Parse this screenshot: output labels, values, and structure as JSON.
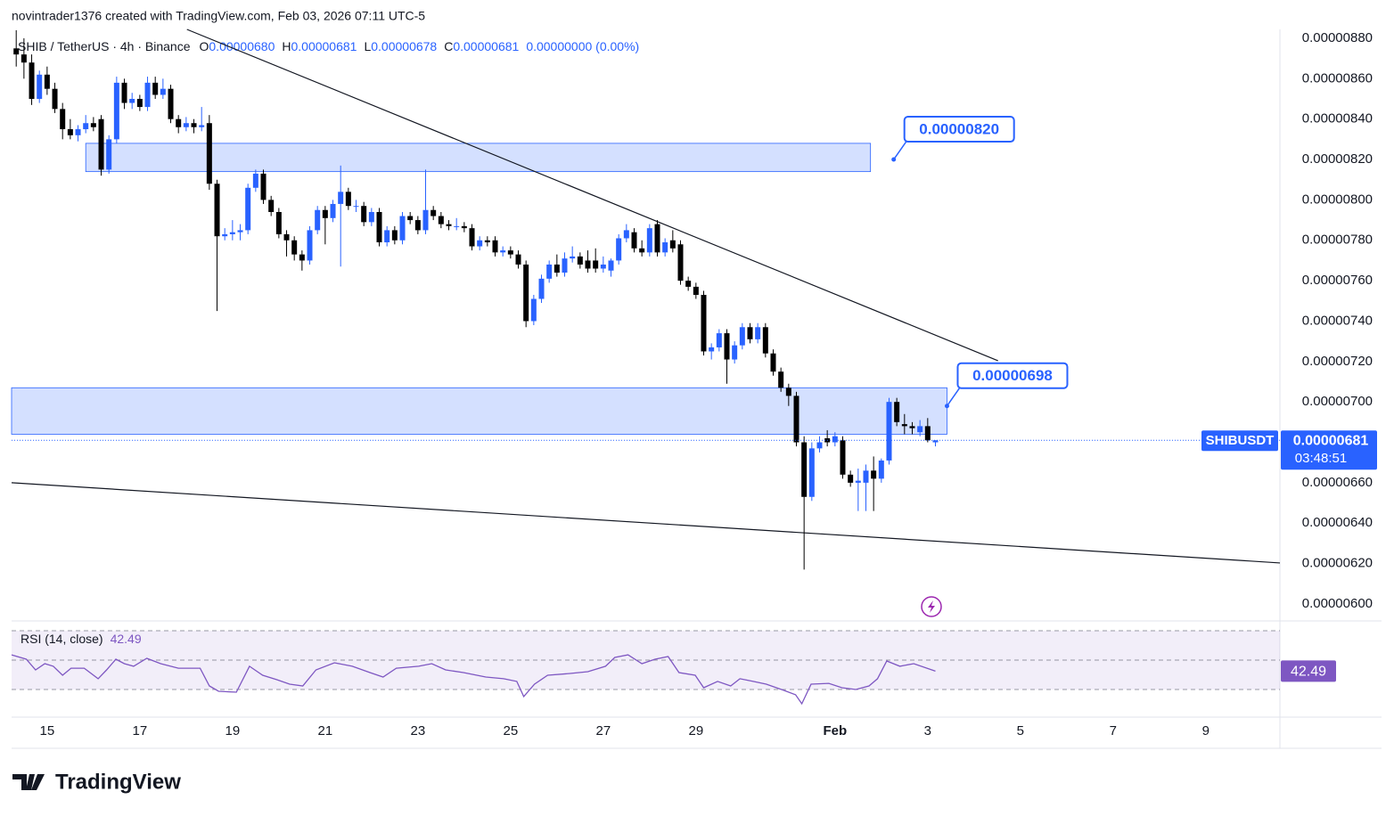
{
  "header": "novintrader1376 created with TradingView.com, Feb 03, 2026 07:11 UTC-5",
  "brand": "TradingView",
  "chart_data": {
    "type": "candlestick",
    "legend": {
      "symbol": "SHIB / TetherUS · 4h · Binance",
      "items": [
        {
          "key": "O",
          "label": "0.00000680"
        },
        {
          "key": "H",
          "label": "0.00000681"
        },
        {
          "key": "L",
          "label": "0.00000678"
        },
        {
          "key": "C",
          "label": "0.00000681"
        }
      ],
      "change": "0.00000000 (0.00%)"
    },
    "up_color": "#2962ff",
    "down_color": "#000000",
    "open": [
      8.75e-06,
      8.72e-06,
      8.68e-06,
      8.5e-06,
      8.62e-06,
      8.55e-06,
      8.45e-06,
      8.35e-06,
      8.32e-06,
      8.35e-06,
      8.38e-06,
      8.4e-06,
      8.15e-06,
      8.3e-06,
      8.58e-06,
      8.48e-06,
      8.5e-06,
      8.46e-06,
      8.58e-06,
      8.52e-06,
      8.55e-06,
      8.4e-06,
      8.36e-06,
      8.38e-06,
      8.36e-06,
      8.38e-06,
      8.08e-06,
      7.82e-06,
      7.83e-06,
      7.84e-06,
      7.85e-06,
      8.06e-06,
      8.13e-06,
      8e-06,
      7.94e-06,
      7.83e-06,
      7.8e-06,
      7.73e-06,
      7.7e-06,
      7.85e-06,
      7.95e-06,
      7.91e-06,
      7.98e-06,
      8.04e-06,
      7.97e-06,
      7.97e-06,
      7.89e-06,
      7.94e-06,
      7.79e-06,
      7.85e-06,
      7.8e-06,
      7.92e-06,
      7.9e-06,
      7.85e-06,
      7.95e-06,
      7.92e-06,
      7.88e-06,
      7.87e-06,
      7.87e-06,
      7.86e-06,
      7.77e-06,
      7.8e-06,
      7.8e-06,
      7.74e-06,
      7.75e-06,
      7.73e-06,
      7.68e-06,
      7.4e-06,
      7.51e-06,
      7.61e-06,
      7.68e-06,
      7.64e-06,
      7.71e-06,
      7.72e-06,
      7.7e-06,
      7.7e-06,
      7.66e-06,
      7.65e-06,
      7.7e-06,
      7.81e-06,
      7.84e-06,
      7.76e-06,
      7.74e-06,
      7.88e-06,
      7.74e-06,
      7.8e-06,
      7.78e-06,
      7.6e-06,
      7.57e-06,
      7.53e-06,
      7.25e-06,
      7.27e-06,
      7.34e-06,
      7.21e-06,
      7.28e-06,
      7.37e-06,
      7.31e-06,
      7.37e-06,
      7.24e-06,
      7.15e-06,
      7.07e-06,
      7.03e-06,
      6.8e-06,
      6.53e-06,
      6.77e-06,
      6.82e-06,
      6.8e-06,
      6.81e-06,
      6.64e-06,
      6.6e-06,
      6.6e-06,
      6.66e-06,
      6.62e-06,
      6.71e-06,
      7e-06,
      6.89e-06,
      6.88e-06,
      6.85e-06,
      6.88e-06,
      6.8e-06
    ],
    "high": [
      8.84e-06,
      8.8e-06,
      8.72e-06,
      8.64e-06,
      8.66e-06,
      8.58e-06,
      8.48e-06,
      8.4e-06,
      8.37e-06,
      8.42e-06,
      8.41e-06,
      8.42e-06,
      8.32e-06,
      8.61e-06,
      8.6e-06,
      8.53e-06,
      8.52e-06,
      8.61e-06,
      8.61e-06,
      8.6e-06,
      8.57e-06,
      8.42e-06,
      8.41e-06,
      8.4e-06,
      8.46e-06,
      8.42e-06,
      8.1e-06,
      7.86e-06,
      7.9e-06,
      7.88e-06,
      8.08e-06,
      8.15e-06,
      8.15e-06,
      8.02e-06,
      7.96e-06,
      7.85e-06,
      7.82e-06,
      7.75e-06,
      7.87e-06,
      7.97e-06,
      7.97e-06,
      8e-06,
      8.17e-06,
      8.06e-06,
      8e-06,
      7.99e-06,
      7.96e-06,
      7.96e-06,
      7.87e-06,
      7.87e-06,
      7.94e-06,
      7.94e-06,
      7.92e-06,
      8.15e-06,
      7.97e-06,
      7.94e-06,
      7.9e-06,
      7.91e-06,
      7.89e-06,
      7.88e-06,
      7.82e-06,
      7.82e-06,
      7.82e-06,
      7.77e-06,
      7.77e-06,
      7.75e-06,
      7.7e-06,
      7.53e-06,
      7.63e-06,
      7.7e-06,
      7.73e-06,
      7.74e-06,
      7.77e-06,
      7.74e-06,
      7.75e-06,
      7.76e-06,
      7.72e-06,
      7.71e-06,
      7.83e-06,
      7.88e-06,
      7.86e-06,
      7.8e-06,
      7.88e-06,
      7.9e-06,
      7.81e-06,
      7.85e-06,
      7.8e-06,
      7.62e-06,
      7.59e-06,
      7.55e-06,
      7.29e-06,
      7.36e-06,
      7.36e-06,
      7.3e-06,
      7.39e-06,
      7.39e-06,
      7.39e-06,
      7.39e-06,
      7.26e-06,
      7.17e-06,
      7.09e-06,
      7.05e-06,
      6.83e-06,
      6.8e-06,
      6.83e-06,
      6.86e-06,
      6.85e-06,
      6.83e-06,
      6.66e-06,
      6.67e-06,
      6.69e-06,
      6.73e-06,
      6.72e-06,
      7.02e-06,
      7.02e-06,
      6.94e-06,
      6.9e-06,
      6.91e-06,
      6.92e-06,
      6.81e-06
    ],
    "low": [
      8.66e-06,
      8.6e-06,
      8.47e-06,
      8.48e-06,
      8.52e-06,
      8.43e-06,
      8.3e-06,
      8.3e-06,
      8.29e-06,
      8.33e-06,
      8.34e-06,
      8.12e-06,
      8.13e-06,
      8.28e-06,
      8.45e-06,
      8.45e-06,
      8.44e-06,
      8.44e-06,
      8.5e-06,
      8.5e-06,
      8.38e-06,
      8.33e-06,
      8.34e-06,
      8.33e-06,
      8.34e-06,
      8.05e-06,
      7.45e-06,
      7.8e-06,
      7.8e-06,
      7.8e-06,
      7.83e-06,
      8.04e-06,
      7.98e-06,
      7.92e-06,
      7.81e-06,
      7.72e-06,
      7.7e-06,
      7.65e-06,
      7.68e-06,
      7.83e-06,
      7.78e-06,
      7.89e-06,
      7.67e-06,
      7.95e-06,
      7.94e-06,
      7.87e-06,
      7.87e-06,
      7.77e-06,
      7.77e-06,
      7.78e-06,
      7.78e-06,
      7.88e-06,
      7.83e-06,
      7.83e-06,
      7.9e-06,
      7.86e-06,
      7.85e-06,
      7.85e-06,
      7.84e-06,
      7.75e-06,
      7.75e-06,
      7.77e-06,
      7.72e-06,
      7.72e-06,
      7.71e-06,
      7.66e-06,
      7.37e-06,
      7.38e-06,
      7.49e-06,
      7.59e-06,
      7.62e-06,
      7.62e-06,
      7.69e-06,
      7.66e-06,
      7.64e-06,
      7.64e-06,
      7.64e-06,
      7.62e-06,
      7.68e-06,
      7.79e-06,
      7.74e-06,
      7.72e-06,
      7.72e-06,
      7.72e-06,
      7.72e-06,
      7.74e-06,
      7.58e-06,
      7.55e-06,
      7.51e-06,
      7.23e-06,
      7.21e-06,
      7.25e-06,
      7.09e-06,
      7.19e-06,
      7.26e-06,
      7.29e-06,
      7.29e-06,
      7.22e-06,
      7.13e-06,
      7.05e-06,
      6.98e-06,
      6.78e-06,
      6.17e-06,
      6.51e-06,
      6.75e-06,
      6.78e-06,
      6.78e-06,
      6.62e-06,
      6.58e-06,
      6.46e-06,
      6.46e-06,
      6.46e-06,
      6.6e-06,
      6.69e-06,
      6.88e-06,
      6.84e-06,
      6.84e-06,
      6.83e-06,
      6.8e-06,
      6.78e-06
    ],
    "close": [
      8.72e-06,
      8.68e-06,
      8.5e-06,
      8.62e-06,
      8.55e-06,
      8.45e-06,
      8.35e-06,
      8.32e-06,
      8.35e-06,
      8.38e-06,
      8.36e-06,
      8.15e-06,
      8.3e-06,
      8.58e-06,
      8.48e-06,
      8.5e-06,
      8.46e-06,
      8.58e-06,
      8.52e-06,
      8.55e-06,
      8.4e-06,
      8.36e-06,
      8.38e-06,
      8.36e-06,
      8.37e-06,
      8.08e-06,
      7.82e-06,
      7.83e-06,
      7.84e-06,
      7.85e-06,
      8.06e-06,
      8.13e-06,
      8e-06,
      7.94e-06,
      7.83e-06,
      7.8e-06,
      7.73e-06,
      7.7e-06,
      7.85e-06,
      7.95e-06,
      7.91e-06,
      7.98e-06,
      8.04e-06,
      7.97e-06,
      7.97e-06,
      7.89e-06,
      7.94e-06,
      7.79e-06,
      7.85e-06,
      7.8e-06,
      7.92e-06,
      7.9e-06,
      7.85e-06,
      7.95e-06,
      7.92e-06,
      7.88e-06,
      7.87e-06,
      7.87e-06,
      7.86e-06,
      7.77e-06,
      7.8e-06,
      7.79e-06,
      7.74e-06,
      7.75e-06,
      7.73e-06,
      7.68e-06,
      7.4e-06,
      7.51e-06,
      7.61e-06,
      7.68e-06,
      7.64e-06,
      7.71e-06,
      7.72e-06,
      7.68e-06,
      7.66e-06,
      7.66e-06,
      7.68e-06,
      7.7e-06,
      7.81e-06,
      7.85e-06,
      7.76e-06,
      7.74e-06,
      7.86e-06,
      7.74e-06,
      7.79e-06,
      7.76e-06,
      7.6e-06,
      7.57e-06,
      7.53e-06,
      7.25e-06,
      7.27e-06,
      7.34e-06,
      7.21e-06,
      7.28e-06,
      7.37e-06,
      7.31e-06,
      7.37e-06,
      7.24e-06,
      7.15e-06,
      7.07e-06,
      7.03e-06,
      6.8e-06,
      6.53e-06,
      6.77e-06,
      6.8e-06,
      6.8e-06,
      6.83e-06,
      6.64e-06,
      6.6e-06,
      6.61e-06,
      6.66e-06,
      6.62e-06,
      6.71e-06,
      7e-06,
      6.9e-06,
      6.88e-06,
      6.87e-06,
      6.88e-06,
      6.81e-06,
      6.81e-06
    ],
    "xlim": [
      -0.6,
      163.6
    ],
    "xticks": [
      {
        "value": 4,
        "label": "15"
      },
      {
        "value": 16,
        "label": "17"
      },
      {
        "value": 28,
        "label": "19"
      },
      {
        "value": 40,
        "label": "21"
      },
      {
        "value": 52,
        "label": "23"
      },
      {
        "value": 64,
        "label": "25"
      },
      {
        "value": 76,
        "label": "27"
      },
      {
        "value": 88,
        "label": "29"
      },
      {
        "value": 106,
        "label": "Feb"
      },
      {
        "value": 118,
        "label": "3"
      },
      {
        "value": 130,
        "label": "5"
      },
      {
        "value": 142,
        "label": "7"
      },
      {
        "value": 154,
        "label": "9"
      }
    ],
    "ylim": [
      5.916e-06,
      8.844e-06
    ],
    "yticks": [
      {
        "value": 8.8e-06,
        "label": "0.00000880"
      },
      {
        "value": 8.6e-06,
        "label": "0.00000860"
      },
      {
        "value": 8.4e-06,
        "label": "0.00000840"
      },
      {
        "value": 8.2e-06,
        "label": "0.00000820"
      },
      {
        "value": 8e-06,
        "label": "0.00000800"
      },
      {
        "value": 7.8e-06,
        "label": "0.00000780"
      },
      {
        "value": 7.6e-06,
        "label": "0.00000760"
      },
      {
        "value": 7.4e-06,
        "label": "0.00000740"
      },
      {
        "value": 7.2e-06,
        "label": "0.00000720"
      },
      {
        "value": 7e-06,
        "label": "0.00000700"
      },
      {
        "value": 6.8e-06,
        "label": "0.00000680"
      },
      {
        "value": 6.6e-06,
        "label": "0.00000660"
      },
      {
        "value": 6.4e-06,
        "label": "0.00000640"
      },
      {
        "value": 6.2e-06,
        "label": "0.00000620"
      },
      {
        "value": 6e-06,
        "label": "0.00000600"
      }
    ],
    "last_price": {
      "symbol": "SHIBUSDT",
      "value": 6.81e-06,
      "label": "0.00000681",
      "countdown": "03:48:51",
      "color": "#2962ff"
    },
    "zones": [
      {
        "x": [
          9,
          110.6
        ],
        "y": [
          8.14e-06,
          8.28e-06
        ]
      },
      {
        "x": [
          -0.6,
          120.5
        ],
        "y": [
          6.84e-06,
          7.07e-06
        ]
      }
    ],
    "trendlines": [
      {
        "x": [
          22.1,
          127.1
        ],
        "y": [
          8.844e-06,
          7.204e-06
        ]
      },
      {
        "x": [
          -0.6,
          163.6
        ],
        "y": [
          6.6e-06,
          6.203e-06
        ]
      }
    ],
    "callouts": [
      {
        "x": 113.6,
        "value": 8.2e-06,
        "label": "0.00000820"
      },
      {
        "x": 120.5,
        "value": 6.98e-06,
        "label": "0.00000698"
      }
    ],
    "rsi": {
      "title": "RSI (14, close)",
      "color": "#7e57c2",
      "ylim": [
        11.2,
        74.85
      ],
      "levels": [
        70,
        50,
        30
      ],
      "x": [
        -0.6,
        1.3,
        2.5,
        3.7,
        4.8,
        6,
        7.1,
        8.8,
        10.6,
        11.7,
        12.9,
        14,
        15.2,
        16.9,
        18.7,
        21,
        23.8,
        25,
        26.2,
        28.5,
        30.2,
        31.9,
        33.7,
        35.4,
        37.1,
        38.8,
        41.2,
        43.5,
        45.8,
        47.5,
        49.2,
        52.1,
        53.8,
        55.6,
        57.9,
        60.8,
        63.1,
        64.8,
        65.7,
        67.1,
        68.8,
        71.7,
        74,
        76.3,
        77.5,
        79.2,
        81,
        82.7,
        84.4,
        85.8,
        87.9,
        89,
        90.8,
        92.5,
        93.7,
        95.4,
        97.1,
        99.4,
        100.9,
        101.7,
        102.9,
        105.2,
        106.9,
        108.7,
        110.4,
        111.5,
        112.7,
        114.4,
        116.2,
        119
      ],
      "values": [
        53.6,
        50.6,
        43.3,
        47.6,
        45.8,
        39.7,
        44.5,
        44.5,
        37.3,
        43.3,
        50.6,
        47.6,
        45.8,
        51.2,
        47.6,
        44.5,
        44.5,
        32.4,
        28.8,
        28.2,
        45.8,
        39.7,
        36.7,
        33.6,
        32.4,
        43.3,
        48.2,
        45.8,
        41.5,
        38.5,
        44.5,
        45.8,
        47.6,
        43.3,
        41.5,
        38.5,
        37.3,
        35.5,
        25.2,
        33.6,
        39.7,
        40.9,
        42.1,
        45.8,
        51.8,
        53.6,
        47.6,
        50.6,
        52.4,
        41.5,
        39.7,
        31.2,
        35.5,
        32.4,
        37.3,
        35.5,
        33.6,
        29.4,
        26.4,
        20.3,
        33.6,
        34.2,
        31.2,
        30,
        32.4,
        37.3,
        49.4,
        45.8,
        47.6,
        42.49
      ]
    }
  }
}
